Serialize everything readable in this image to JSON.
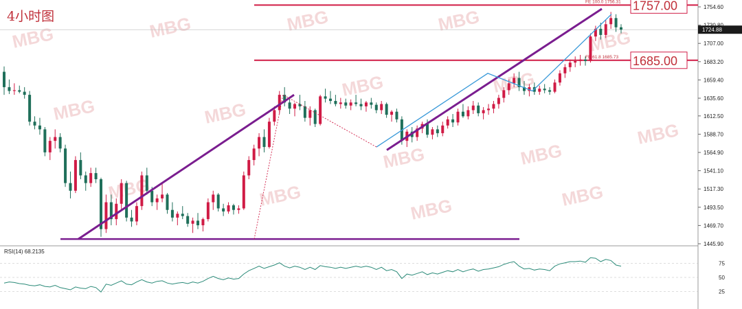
{
  "chart_data": {
    "type": "candlestick",
    "title": "4小时图",
    "timeframe": "4H",
    "price_axis": {
      "ticks": [
        "1754.60",
        "1730.80",
        "1707.00",
        "1683.20",
        "1659.40",
        "1635.60",
        "1612.50",
        "1588.70",
        "1564.90",
        "1541.10",
        "1517.30",
        "1493.50",
        "1469.70",
        "1445.90"
      ],
      "ylim": [
        1445.9,
        1754.6
      ],
      "current_price": "1724.88"
    },
    "price_levels": [
      {
        "label": "1757.00",
        "value": 1757.0,
        "fib_text": "FE 100.0  1756.31"
      },
      {
        "label": "1685.00",
        "value": 1685.0,
        "fib_text": "FE 61.8  1685.73"
      }
    ],
    "support_line_value": 1452,
    "rsi": {
      "label": "RSI(14) 68.2135",
      "ticks": [
        "75",
        "50",
        "25"
      ],
      "ylim": [
        0,
        100
      ],
      "levels": [
        75,
        50,
        25
      ]
    },
    "watermark": "MBG",
    "colors": {
      "up": "#d01b45",
      "down": "#1f6f5a",
      "channel": "#7a1d8f",
      "swing": "#3a9ad9",
      "level": "#d01b45",
      "rsi": "#2a8a78"
    },
    "candles": [
      [
        1670,
        1677,
        1640,
        1650
      ],
      [
        1650,
        1660,
        1641,
        1645
      ],
      [
        1645,
        1655,
        1640,
        1646
      ],
      [
        1646,
        1652,
        1642,
        1644
      ],
      [
        1644,
        1650,
        1635,
        1640
      ],
      [
        1640,
        1645,
        1600,
        1605
      ],
      [
        1605,
        1612,
        1595,
        1600
      ],
      [
        1600,
        1610,
        1588,
        1595
      ],
      [
        1595,
        1598,
        1560,
        1565
      ],
      [
        1565,
        1585,
        1555,
        1580
      ],
      [
        1580,
        1595,
        1570,
        1585
      ],
      [
        1585,
        1590,
        1565,
        1570
      ],
      [
        1570,
        1575,
        1520,
        1525
      ],
      [
        1525,
        1540,
        1505,
        1515
      ],
      [
        1515,
        1560,
        1512,
        1555
      ],
      [
        1555,
        1565,
        1530,
        1535
      ],
      [
        1535,
        1540,
        1515,
        1525
      ],
      [
        1525,
        1545,
        1520,
        1538
      ],
      [
        1538,
        1545,
        1525,
        1530
      ],
      [
        1530,
        1532,
        1455,
        1465
      ],
      [
        1465,
        1510,
        1460,
        1500
      ],
      [
        1500,
        1510,
        1470,
        1478
      ],
      [
        1478,
        1505,
        1470,
        1498
      ],
      [
        1498,
        1530,
        1490,
        1525
      ],
      [
        1525,
        1528,
        1475,
        1480
      ],
      [
        1480,
        1490,
        1468,
        1475
      ],
      [
        1475,
        1500,
        1470,
        1495
      ],
      [
        1495,
        1540,
        1490,
        1535
      ],
      [
        1535,
        1545,
        1510,
        1515
      ],
      [
        1515,
        1520,
        1495,
        1500
      ],
      [
        1500,
        1510,
        1490,
        1505
      ],
      [
        1505,
        1525,
        1500,
        1510
      ],
      [
        1510,
        1512,
        1485,
        1490
      ],
      [
        1490,
        1500,
        1475,
        1480
      ],
      [
        1480,
        1488,
        1470,
        1485
      ],
      [
        1485,
        1495,
        1478,
        1482
      ],
      [
        1482,
        1486,
        1468,
        1472
      ],
      [
        1472,
        1480,
        1460,
        1476
      ],
      [
        1476,
        1486,
        1465,
        1470
      ],
      [
        1470,
        1480,
        1462,
        1478
      ],
      [
        1478,
        1505,
        1475,
        1500
      ],
      [
        1500,
        1515,
        1490,
        1510
      ],
      [
        1510,
        1512,
        1488,
        1492
      ],
      [
        1492,
        1498,
        1482,
        1488
      ],
      [
        1488,
        1500,
        1485,
        1496
      ],
      [
        1496,
        1498,
        1484,
        1490
      ],
      [
        1490,
        1496,
        1485,
        1492
      ],
      [
        1492,
        1540,
        1490,
        1535
      ],
      [
        1535,
        1560,
        1530,
        1555
      ],
      [
        1555,
        1575,
        1548,
        1570
      ],
      [
        1570,
        1590,
        1560,
        1585
      ],
      [
        1585,
        1595,
        1565,
        1572
      ],
      [
        1572,
        1610,
        1570,
        1605
      ],
      [
        1605,
        1625,
        1600,
        1620
      ],
      [
        1620,
        1645,
        1615,
        1640
      ],
      [
        1640,
        1650,
        1625,
        1630
      ],
      [
        1630,
        1635,
        1615,
        1622
      ],
      [
        1622,
        1630,
        1612,
        1628
      ],
      [
        1628,
        1640,
        1620,
        1625
      ],
      [
        1625,
        1632,
        1605,
        1610
      ],
      [
        1610,
        1625,
        1600,
        1620
      ],
      [
        1620,
        1622,
        1598,
        1602
      ],
      [
        1602,
        1640,
        1600,
        1638
      ],
      [
        1638,
        1648,
        1630,
        1635
      ],
      [
        1635,
        1645,
        1628,
        1632
      ],
      [
        1632,
        1640,
        1625,
        1628
      ],
      [
        1628,
        1636,
        1622,
        1630
      ],
      [
        1630,
        1635,
        1622,
        1626
      ],
      [
        1626,
        1634,
        1620,
        1630
      ],
      [
        1630,
        1640,
        1625,
        1628
      ],
      [
        1628,
        1635,
        1620,
        1625
      ],
      [
        1625,
        1632,
        1618,
        1630
      ],
      [
        1630,
        1636,
        1622,
        1627
      ],
      [
        1627,
        1630,
        1616,
        1620
      ],
      [
        1620,
        1632,
        1615,
        1628
      ],
      [
        1628,
        1630,
        1610,
        1614
      ],
      [
        1614,
        1620,
        1605,
        1618
      ],
      [
        1618,
        1622,
        1604,
        1608
      ],
      [
        1608,
        1612,
        1575,
        1580
      ],
      [
        1580,
        1595,
        1572,
        1592
      ],
      [
        1592,
        1598,
        1578,
        1585
      ],
      [
        1585,
        1600,
        1580,
        1596
      ],
      [
        1596,
        1605,
        1590,
        1602
      ],
      [
        1602,
        1608,
        1584,
        1588
      ],
      [
        1588,
        1598,
        1582,
        1595
      ],
      [
        1595,
        1600,
        1585,
        1590
      ],
      [
        1590,
        1605,
        1586,
        1600
      ],
      [
        1600,
        1612,
        1596,
        1608
      ],
      [
        1608,
        1615,
        1598,
        1604
      ],
      [
        1604,
        1622,
        1600,
        1618
      ],
      [
        1618,
        1628,
        1610,
        1612
      ],
      [
        1612,
        1625,
        1608,
        1620
      ],
      [
        1620,
        1632,
        1615,
        1626
      ],
      [
        1626,
        1630,
        1612,
        1616
      ],
      [
        1616,
        1624,
        1608,
        1620
      ],
      [
        1620,
        1628,
        1614,
        1622
      ],
      [
        1622,
        1632,
        1616,
        1628
      ],
      [
        1628,
        1640,
        1622,
        1636
      ],
      [
        1636,
        1650,
        1630,
        1646
      ],
      [
        1646,
        1660,
        1640,
        1655
      ],
      [
        1655,
        1668,
        1650,
        1662
      ],
      [
        1662,
        1670,
        1645,
        1650
      ],
      [
        1650,
        1658,
        1640,
        1645
      ],
      [
        1645,
        1654,
        1638,
        1650
      ],
      [
        1650,
        1656,
        1640,
        1644
      ],
      [
        1644,
        1652,
        1640,
        1648
      ],
      [
        1648,
        1654,
        1642,
        1646
      ],
      [
        1646,
        1650,
        1640,
        1644
      ],
      [
        1644,
        1660,
        1642,
        1656
      ],
      [
        1656,
        1672,
        1652,
        1668
      ],
      [
        1668,
        1680,
        1662,
        1676
      ],
      [
        1676,
        1686,
        1670,
        1682
      ],
      [
        1682,
        1690,
        1676,
        1684
      ],
      [
        1684,
        1692,
        1678,
        1686
      ],
      [
        1686,
        1690,
        1678,
        1684
      ],
      [
        1684,
        1720,
        1682,
        1716
      ],
      [
        1716,
        1730,
        1710,
        1726
      ],
      [
        1726,
        1734,
        1712,
        1718
      ],
      [
        1718,
        1738,
        1714,
        1732
      ],
      [
        1732,
        1748,
        1726,
        1740
      ],
      [
        1740,
        1745,
        1722,
        1728
      ],
      [
        1728,
        1732,
        1720,
        1725
      ]
    ],
    "rsi_values": [
      40,
      42,
      41,
      39,
      38,
      36,
      35,
      37,
      34,
      33,
      36,
      32,
      30,
      28,
      33,
      31,
      30,
      34,
      32,
      24,
      38,
      36,
      40,
      44,
      38,
      37,
      42,
      46,
      42,
      40,
      43,
      44,
      40,
      38,
      40,
      41,
      39,
      42,
      40,
      43,
      48,
      52,
      48,
      46,
      49,
      47,
      48,
      56,
      62,
      66,
      70,
      66,
      69,
      72,
      76,
      70,
      67,
      70,
      68,
      64,
      68,
      64,
      71,
      69,
      68,
      66,
      68,
      66,
      68,
      70,
      68,
      70,
      68,
      64,
      68,
      62,
      64,
      60,
      48,
      56,
      54,
      57,
      60,
      55,
      58,
      56,
      59,
      62,
      60,
      64,
      60,
      63,
      65,
      61,
      64,
      65,
      67,
      69,
      73,
      76,
      78,
      70,
      65,
      66,
      63,
      65,
      64,
      62,
      70,
      74,
      76,
      78,
      78,
      79,
      77,
      85,
      84,
      78,
      82,
      80,
      72,
      70
    ]
  }
}
